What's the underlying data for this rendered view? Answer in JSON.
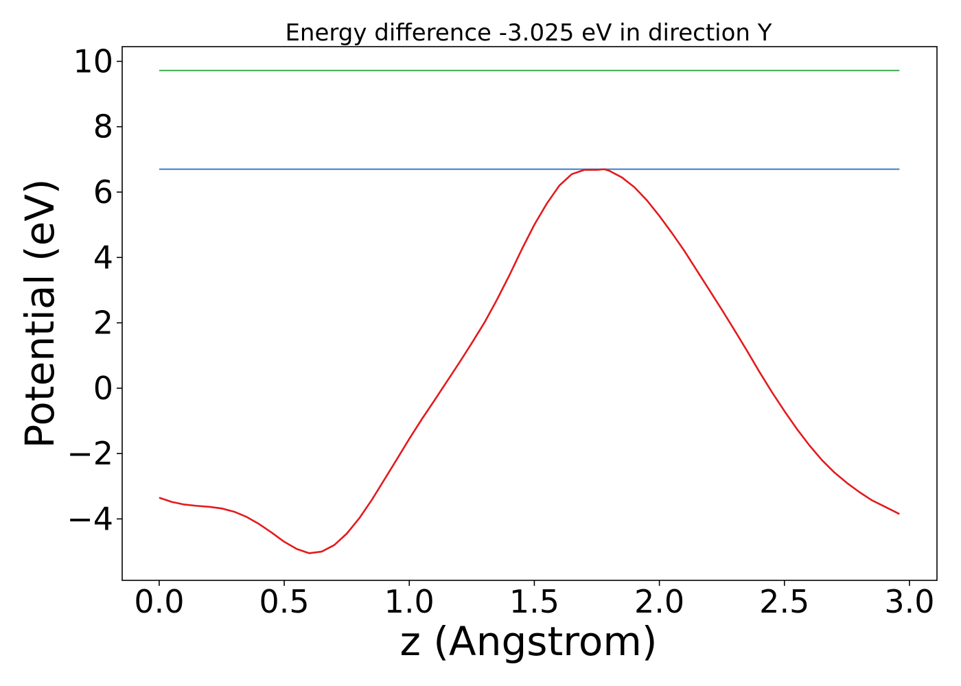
{
  "chart_data": {
    "type": "line",
    "title": "Energy difference -3.025 eV in direction Y",
    "xlabel": "z (Angstrom)",
    "ylabel": "Potential (eV)",
    "xlim": [
      -0.148,
      3.11
    ],
    "ylim": [
      -5.88,
      10.45
    ],
    "grid": false,
    "xticks": [
      0.0,
      0.5,
      1.0,
      1.5,
      2.0,
      2.5,
      3.0
    ],
    "xtick_labels": [
      "0.0",
      "0.5",
      "1.0",
      "1.5",
      "2.0",
      "2.5",
      "3.0"
    ],
    "yticks": [
      -4,
      -2,
      0,
      2,
      4,
      6,
      8,
      10
    ],
    "ytick_labels": [
      "−4",
      "−2",
      "0",
      "2",
      "4",
      "6",
      "8",
      "10"
    ],
    "series": [
      {
        "name": "potential",
        "color": "#e31a1c",
        "x": [
          0.0,
          0.05,
          0.1,
          0.15,
          0.2,
          0.25,
          0.3,
          0.35,
          0.4,
          0.45,
          0.5,
          0.55,
          0.6,
          0.65,
          0.7,
          0.75,
          0.8,
          0.85,
          0.9,
          0.95,
          1.0,
          1.05,
          1.1,
          1.15,
          1.2,
          1.25,
          1.3,
          1.35,
          1.4,
          1.45,
          1.5,
          1.55,
          1.6,
          1.65,
          1.7,
          1.75,
          1.78,
          1.8,
          1.85,
          1.9,
          1.95,
          2.0,
          2.05,
          2.1,
          2.15,
          2.2,
          2.25,
          2.3,
          2.35,
          2.4,
          2.45,
          2.5,
          2.55,
          2.6,
          2.65,
          2.7,
          2.75,
          2.8,
          2.85,
          2.9,
          2.96
        ],
        "y": [
          -3.35,
          -3.48,
          -3.56,
          -3.6,
          -3.63,
          -3.68,
          -3.78,
          -3.94,
          -4.16,
          -4.42,
          -4.7,
          -4.92,
          -5.05,
          -5.0,
          -4.8,
          -4.45,
          -3.98,
          -3.42,
          -2.8,
          -2.18,
          -1.55,
          -0.95,
          -0.38,
          0.2,
          0.78,
          1.38,
          2.0,
          2.7,
          3.45,
          4.25,
          5.0,
          5.65,
          6.2,
          6.55,
          6.68,
          6.68,
          6.7,
          6.65,
          6.45,
          6.15,
          5.75,
          5.27,
          4.75,
          4.2,
          3.6,
          3.0,
          2.4,
          1.78,
          1.15,
          0.5,
          -0.12,
          -0.7,
          -1.25,
          -1.75,
          -2.2,
          -2.58,
          -2.9,
          -3.18,
          -3.43,
          -3.62,
          -3.85
        ]
      },
      {
        "name": "blue level",
        "color": "#3a7dc5",
        "x": [
          0.0,
          2.96
        ],
        "y": [
          6.7,
          6.7
        ]
      },
      {
        "name": "green level",
        "color": "#3cab47",
        "x": [
          0.0,
          2.96
        ],
        "y": [
          9.72,
          9.72
        ]
      }
    ]
  }
}
